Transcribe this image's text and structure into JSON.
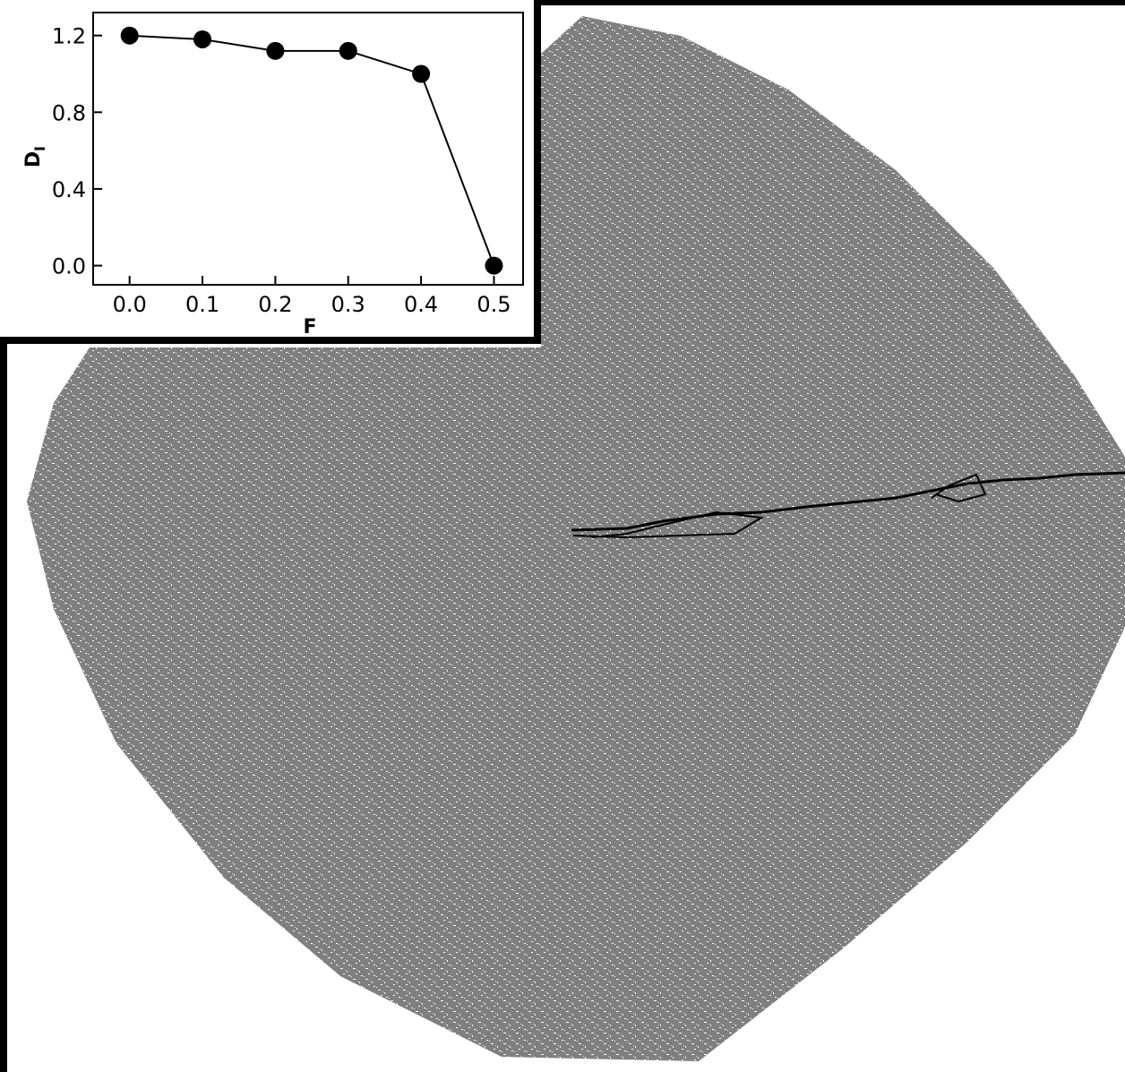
{
  "colors": {
    "cluster": "#7f7f7f",
    "background": "#ffffff",
    "path": "#000000"
  },
  "chart_data": [
    {
      "type": "line",
      "xlabel": "F",
      "ylabel": "D",
      "ylabel_subscript": "I",
      "x": [
        0.0,
        0.1,
        0.2,
        0.3,
        0.4,
        0.5
      ],
      "x_tick_labels": [
        "0.0",
        "0.1",
        "0.2",
        "0.3",
        "0.4",
        "0.5"
      ],
      "y_tick_labels": [
        "0.0",
        "0.4",
        "0.8",
        "1.2"
      ],
      "y_ticks": [
        0.0,
        0.4,
        0.8,
        1.2
      ],
      "series": [
        {
          "values": [
            1.2,
            1.18,
            1.12,
            1.12,
            1.0,
            0.0
          ]
        }
      ],
      "xlim": [
        -0.05,
        0.54
      ],
      "ylim": [
        -0.1,
        1.32
      ],
      "marker": "filled-circle",
      "grid": false
    }
  ]
}
